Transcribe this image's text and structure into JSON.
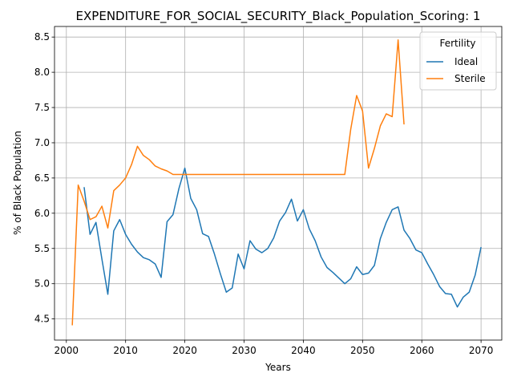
{
  "chart_data": {
    "type": "line",
    "title": "EXPENDITURE_FOR_SOCIAL_SECURITY_Black_Population_Scoring: 1",
    "xlabel": "Years",
    "ylabel": "% of Black Population",
    "xlim": [
      1998,
      2073.5
    ],
    "ylim": [
      4.2,
      8.65
    ],
    "x_ticks": [
      2000,
      2010,
      2020,
      2030,
      2040,
      2050,
      2060,
      2070
    ],
    "y_ticks": [
      4.5,
      5.0,
      5.5,
      6.0,
      6.5,
      7.0,
      7.5,
      8.0,
      8.5
    ],
    "grid": true,
    "legend": {
      "title": "Fertility",
      "position": "top-right"
    },
    "series": [
      {
        "name": "Ideal",
        "color": "#1f77b4",
        "x": [
          2003,
          2004,
          2005,
          2006,
          2007,
          2008,
          2009,
          2010,
          2011,
          2012,
          2013,
          2014,
          2015,
          2016,
          2017,
          2018,
          2019,
          2020,
          2021,
          2022,
          2023,
          2024,
          2025,
          2026,
          2027,
          2028,
          2029,
          2030,
          2031,
          2032,
          2033,
          2034,
          2035,
          2036,
          2037,
          2038,
          2039,
          2040,
          2041,
          2042,
          2043,
          2044,
          2045,
          2046,
          2047,
          2048,
          2049,
          2050,
          2051,
          2052,
          2053,
          2054,
          2055,
          2056,
          2057,
          2058,
          2059,
          2060,
          2061,
          2062,
          2063,
          2064,
          2065,
          2066,
          2067,
          2068,
          2069,
          2070
        ],
        "values": [
          6.37,
          5.7,
          5.87,
          5.35,
          4.85,
          5.75,
          5.91,
          5.7,
          5.56,
          5.45,
          5.37,
          5.34,
          5.28,
          5.09,
          5.88,
          5.98,
          6.35,
          6.64,
          6.21,
          6.05,
          5.71,
          5.67,
          5.42,
          5.14,
          4.88,
          4.94,
          5.42,
          5.21,
          5.61,
          5.49,
          5.44,
          5.5,
          5.65,
          5.89,
          6.01,
          6.2,
          5.89,
          6.05,
          5.78,
          5.61,
          5.38,
          5.23,
          5.16,
          5.08,
          5.0,
          5.07,
          5.24,
          5.13,
          5.15,
          5.26,
          5.64,
          5.87,
          6.05,
          6.09,
          5.76,
          5.64,
          5.48,
          5.44,
          5.28,
          5.13,
          4.96,
          4.86,
          4.85,
          4.67,
          4.81,
          4.88,
          5.12,
          5.52
        ]
      },
      {
        "name": "Sterile",
        "color": "#ff7f0e",
        "x": [
          2001,
          2002,
          2003,
          2004,
          2005,
          2006,
          2007,
          2008,
          2009,
          2010,
          2011,
          2012,
          2013,
          2014,
          2015,
          2016,
          2017,
          2018,
          2019,
          2020,
          2021,
          2022,
          2023,
          2024,
          2025,
          2026,
          2027,
          2028,
          2029,
          2030,
          2031,
          2032,
          2033,
          2034,
          2035,
          2036,
          2037,
          2038,
          2039,
          2040,
          2041,
          2042,
          2043,
          2044,
          2045,
          2046,
          2047,
          2048,
          2049,
          2050,
          2051,
          2052,
          2053,
          2054,
          2055,
          2056,
          2057
        ],
        "values": [
          4.41,
          6.4,
          6.17,
          5.91,
          5.95,
          6.1,
          5.79,
          6.32,
          6.4,
          6.5,
          6.69,
          6.95,
          6.82,
          6.76,
          6.67,
          6.63,
          6.6,
          6.55,
          6.55,
          6.55,
          6.55,
          6.55,
          6.55,
          6.55,
          6.55,
          6.55,
          6.55,
          6.55,
          6.55,
          6.55,
          6.55,
          6.55,
          6.55,
          6.55,
          6.55,
          6.55,
          6.55,
          6.55,
          6.55,
          6.55,
          6.55,
          6.55,
          6.55,
          6.55,
          6.55,
          6.55,
          6.55,
          7.19,
          7.67,
          7.45,
          6.64,
          6.92,
          7.24,
          7.41,
          7.37,
          8.46,
          7.26
        ]
      }
    ]
  }
}
